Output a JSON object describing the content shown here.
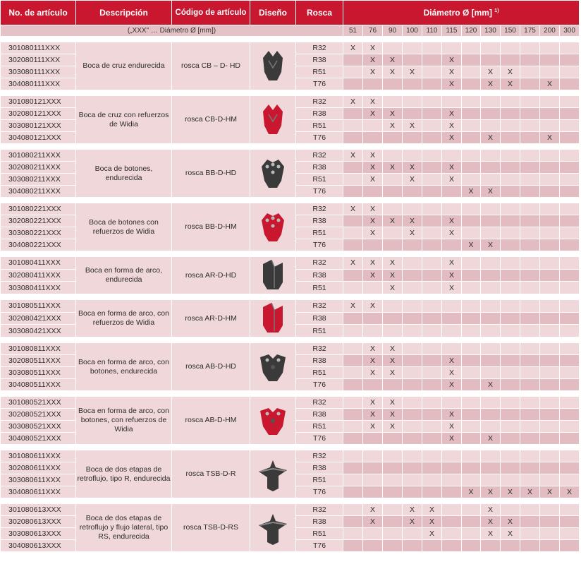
{
  "headers": {
    "article": "No. de artículo",
    "description": "Descripción",
    "code": "Código de artículo",
    "design": "Diseño",
    "thread": "Rosca",
    "diameter": "Diámetro Ø [mm]",
    "footnote_mark": "1)"
  },
  "subheader_note": "(„XXX\" … Diámetro Ø [mm])",
  "diameters": [
    "51",
    "76",
    "90",
    "100",
    "110",
    "115",
    "120",
    "130",
    "150",
    "175",
    "200",
    "300"
  ],
  "mark": "X",
  "groups": [
    {
      "description": "Boca de cruz endurecida",
      "code": "rosca CB – D- HD",
      "design_icon": "cross-bit-hardened-icon",
      "color": "#3a3a3a",
      "rows": [
        {
          "article": "301080111XXX",
          "thread": "R32",
          "marks": [
            1,
            1,
            0,
            0,
            0,
            0,
            0,
            0,
            0,
            0,
            0,
            0
          ]
        },
        {
          "article": "302080111XXX",
          "thread": "R38",
          "marks": [
            0,
            1,
            1,
            0,
            0,
            1,
            0,
            0,
            0,
            0,
            0,
            0
          ]
        },
        {
          "article": "303080111XXX",
          "thread": "R51",
          "marks": [
            0,
            1,
            1,
            1,
            0,
            1,
            0,
            1,
            1,
            0,
            0,
            0
          ]
        },
        {
          "article": "304080111XXX",
          "thread": "T76",
          "marks": [
            0,
            0,
            0,
            0,
            0,
            1,
            0,
            1,
            1,
            0,
            1,
            0
          ]
        }
      ]
    },
    {
      "description": "Boca de cruz con refuerzos de Widia",
      "code": "rosca CB-D-HM",
      "design_icon": "cross-bit-widia-icon",
      "color": "#c8172f",
      "rows": [
        {
          "article": "301080121XXX",
          "thread": "R32",
          "marks": [
            1,
            1,
            0,
            0,
            0,
            0,
            0,
            0,
            0,
            0,
            0,
            0
          ]
        },
        {
          "article": "302080121XXX",
          "thread": "R38",
          "marks": [
            0,
            1,
            1,
            0,
            0,
            1,
            0,
            0,
            0,
            0,
            0,
            0
          ]
        },
        {
          "article": "303080121XXX",
          "thread": "R51",
          "marks": [
            0,
            0,
            1,
            1,
            0,
            1,
            0,
            0,
            0,
            0,
            0,
            0
          ]
        },
        {
          "article": "304080121XXX",
          "thread": "T76",
          "marks": [
            0,
            0,
            0,
            0,
            0,
            1,
            0,
            1,
            0,
            0,
            1,
            0
          ]
        }
      ]
    },
    {
      "description": "Boca de botones, endurecida",
      "code": "rosca BB-D-HD",
      "design_icon": "button-bit-hardened-icon",
      "color": "#3a3a3a",
      "rows": [
        {
          "article": "301080211XXX",
          "thread": "R32",
          "marks": [
            1,
            1,
            0,
            0,
            0,
            0,
            0,
            0,
            0,
            0,
            0,
            0
          ]
        },
        {
          "article": "302080211XXX",
          "thread": "R38",
          "marks": [
            0,
            1,
            1,
            1,
            0,
            1,
            0,
            0,
            0,
            0,
            0,
            0
          ]
        },
        {
          "article": "303080211XXX",
          "thread": "R51",
          "marks": [
            0,
            1,
            0,
            1,
            0,
            1,
            0,
            0,
            0,
            0,
            0,
            0
          ]
        },
        {
          "article": "304080211XXX",
          "thread": "T76",
          "marks": [
            0,
            0,
            0,
            0,
            0,
            0,
            1,
            1,
            0,
            0,
            0,
            0
          ]
        }
      ]
    },
    {
      "description": "Boca de botones con refuerzos de Widia",
      "code": "rosca BB-D-HM",
      "design_icon": "button-bit-widia-icon",
      "color": "#c8172f",
      "rows": [
        {
          "article": "301080221XXX",
          "thread": "R32",
          "marks": [
            1,
            1,
            0,
            0,
            0,
            0,
            0,
            0,
            0,
            0,
            0,
            0
          ]
        },
        {
          "article": "302080221XXX",
          "thread": "R38",
          "marks": [
            0,
            1,
            1,
            1,
            0,
            1,
            0,
            0,
            0,
            0,
            0,
            0
          ]
        },
        {
          "article": "303080221XXX",
          "thread": "R51",
          "marks": [
            0,
            1,
            0,
            1,
            0,
            1,
            0,
            0,
            0,
            0,
            0,
            0
          ]
        },
        {
          "article": "304080221XXX",
          "thread": "T76",
          "marks": [
            0,
            0,
            0,
            0,
            0,
            0,
            1,
            1,
            0,
            0,
            0,
            0
          ]
        }
      ]
    },
    {
      "description": "Boca en forma de arco, endurecida",
      "code": "rosca AR-D-HD",
      "design_icon": "arc-bit-hardened-icon",
      "color": "#3a3a3a",
      "rows": [
        {
          "article": "301080411XXX",
          "thread": "R32",
          "marks": [
            1,
            1,
            1,
            0,
            0,
            1,
            0,
            0,
            0,
            0,
            0,
            0
          ]
        },
        {
          "article": "302080411XXX",
          "thread": "R38",
          "marks": [
            0,
            1,
            1,
            0,
            0,
            1,
            0,
            0,
            0,
            0,
            0,
            0
          ]
        },
        {
          "article": "303080411XXX",
          "thread": "R51",
          "marks": [
            0,
            0,
            1,
            0,
            0,
            1,
            0,
            0,
            0,
            0,
            0,
            0
          ]
        }
      ]
    },
    {
      "description": "Boca en forma de arco, con refuerzos de Widia",
      "code": "rosca AR-D-HM",
      "design_icon": "arc-bit-widia-icon",
      "color": "#c8172f",
      "rows": [
        {
          "article": "301080511XXX",
          "thread": "R32",
          "marks": [
            1,
            1,
            0,
            0,
            0,
            0,
            0,
            0,
            0,
            0,
            0,
            0
          ]
        },
        {
          "article": "302080421XXX",
          "thread": "R38",
          "marks": [
            0,
            0,
            0,
            0,
            0,
            0,
            0,
            0,
            0,
            0,
            0,
            0
          ]
        },
        {
          "article": "303080421XXX",
          "thread": "R51",
          "marks": [
            0,
            0,
            0,
            0,
            0,
            0,
            0,
            0,
            0,
            0,
            0,
            0
          ]
        }
      ]
    },
    {
      "description": "Boca en forma de arco, con botones, endurecida",
      "code": "rosca AB-D-HD",
      "design_icon": "arc-button-bit-hardened-icon",
      "color": "#3a3a3a",
      "rows": [
        {
          "article": "301080811XXX",
          "thread": "R32",
          "marks": [
            0,
            1,
            1,
            0,
            0,
            0,
            0,
            0,
            0,
            0,
            0,
            0
          ]
        },
        {
          "article": "302080511XXX",
          "thread": "R38",
          "marks": [
            0,
            1,
            1,
            0,
            0,
            1,
            0,
            0,
            0,
            0,
            0,
            0
          ]
        },
        {
          "article": "303080511XXX",
          "thread": "R51",
          "marks": [
            0,
            1,
            1,
            0,
            0,
            1,
            0,
            0,
            0,
            0,
            0,
            0
          ]
        },
        {
          "article": "304080511XXX",
          "thread": "T76",
          "marks": [
            0,
            0,
            0,
            0,
            0,
            1,
            0,
            1,
            0,
            0,
            0,
            0
          ]
        }
      ]
    },
    {
      "description": "Boca en forma de arco, con botones, con refuerzos de Widia",
      "code": "rosca AB-D-HM",
      "design_icon": "arc-button-bit-widia-icon",
      "color": "#c8172f",
      "rows": [
        {
          "article": "301080521XXX",
          "thread": "R32",
          "marks": [
            0,
            1,
            1,
            0,
            0,
            0,
            0,
            0,
            0,
            0,
            0,
            0
          ]
        },
        {
          "article": "302080521XXX",
          "thread": "R38",
          "marks": [
            0,
            1,
            1,
            0,
            0,
            1,
            0,
            0,
            0,
            0,
            0,
            0
          ]
        },
        {
          "article": "303080521XXX",
          "thread": "R51",
          "marks": [
            0,
            1,
            1,
            0,
            0,
            1,
            0,
            0,
            0,
            0,
            0,
            0
          ]
        },
        {
          "article": "304080521XXX",
          "thread": "T76",
          "marks": [
            0,
            0,
            0,
            0,
            0,
            1,
            0,
            1,
            0,
            0,
            0,
            0
          ]
        }
      ]
    },
    {
      "description": "Boca de dos etapas de retroflujo, tipo R, endurecida",
      "code": "rosca TSB-D-R",
      "design_icon": "two-stage-bit-r-icon",
      "color": "#3a3a3a",
      "rows": [
        {
          "article": "301080611XXX",
          "thread": "R32",
          "marks": [
            0,
            0,
            0,
            0,
            0,
            0,
            0,
            0,
            0,
            0,
            0,
            0
          ]
        },
        {
          "article": "302080611XXX",
          "thread": "R38",
          "marks": [
            0,
            0,
            0,
            0,
            0,
            0,
            0,
            0,
            0,
            0,
            0,
            0
          ]
        },
        {
          "article": "303080611XXX",
          "thread": "R51",
          "marks": [
            0,
            0,
            0,
            0,
            0,
            0,
            0,
            0,
            0,
            0,
            0,
            0
          ]
        },
        {
          "article": "304080611XXX",
          "thread": "T76",
          "marks": [
            0,
            0,
            0,
            0,
            0,
            0,
            1,
            1,
            1,
            1,
            1,
            1
          ]
        }
      ]
    },
    {
      "description": "Boca de dos etapas de retroflujo y flujo lateral, tipo RS, endurecida",
      "code": "rosca TSB-D-RS",
      "design_icon": "two-stage-bit-rs-icon",
      "color": "#3a3a3a",
      "rows": [
        {
          "article": "301080613XXX",
          "thread": "R32",
          "marks": [
            0,
            1,
            0,
            1,
            1,
            0,
            0,
            1,
            0,
            0,
            0,
            0
          ]
        },
        {
          "article": "302080613XXX",
          "thread": "R38",
          "marks": [
            0,
            1,
            0,
            1,
            1,
            0,
            0,
            1,
            1,
            0,
            0,
            0
          ]
        },
        {
          "article": "303080613XXX",
          "thread": "R51",
          "marks": [
            0,
            0,
            0,
            0,
            1,
            0,
            0,
            1,
            1,
            0,
            0,
            0
          ]
        },
        {
          "article": "304080613XXX",
          "thread": "T76",
          "marks": [
            0,
            0,
            0,
            0,
            0,
            0,
            0,
            0,
            0,
            0,
            0,
            0
          ]
        }
      ]
    }
  ]
}
